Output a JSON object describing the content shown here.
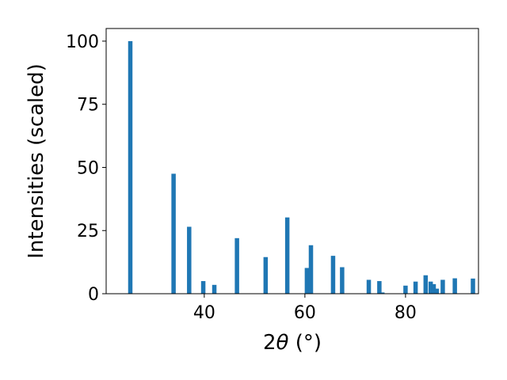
{
  "chart_data": {
    "type": "bar",
    "xlabel_prefix": "2",
    "xlabel_symbol": "θ",
    "xlabel_unit": " (°)",
    "ylabel": "Intensities (scaled)",
    "xlim": [
      20.5,
      94.5
    ],
    "ylim": [
      0,
      105
    ],
    "xticks": [
      40,
      60,
      80
    ],
    "yticks": [
      0,
      25,
      50,
      75,
      100
    ],
    "grid": false,
    "bar_color": "#1f77b4",
    "x": [
      25.3,
      33.9,
      37.0,
      39.8,
      42.0,
      46.5,
      52.2,
      56.5,
      60.4,
      61.2,
      65.6,
      67.4,
      72.7,
      74.8,
      75.4,
      80.0,
      82.0,
      84.0,
      85.0,
      85.6,
      86.2,
      87.4,
      89.8,
      93.4
    ],
    "values": [
      100,
      47.5,
      26.5,
      5,
      3.5,
      22,
      14.5,
      30.2,
      10.2,
      19.2,
      15,
      10.5,
      5.5,
      5,
      0.5,
      3.2,
      4.8,
      7.3,
      4.8,
      3.8,
      2,
      5.5,
      6.1,
      6
    ]
  }
}
